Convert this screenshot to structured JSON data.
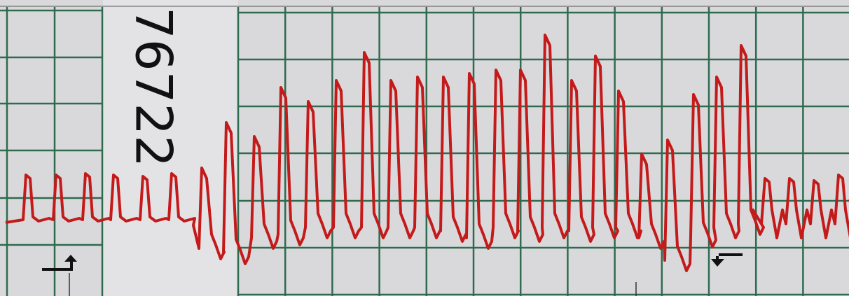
{
  "strip_label": "76722"
}
